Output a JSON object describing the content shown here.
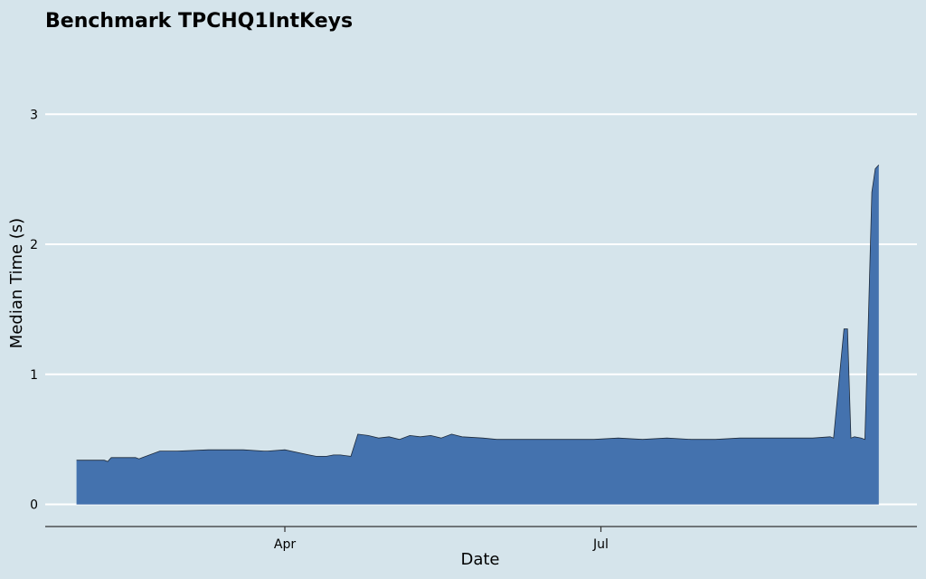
{
  "chart_data": {
    "type": "area",
    "title": "Benchmark TPCHQ1IntKeys",
    "xlabel": "Date",
    "ylabel": "Median Time (s)",
    "x_range": [
      "2020-01-23",
      "2020-09-30"
    ],
    "x_ticks": [
      {
        "date": "2020-04-01",
        "label": "Apr"
      },
      {
        "date": "2020-07-01",
        "label": "Jul"
      }
    ],
    "ylim": [
      -0.17,
      3.6
    ],
    "y_ticks": [
      0,
      1,
      2,
      3
    ],
    "grid": "horizontal",
    "legend": "none",
    "colors": {
      "background": "#d5e4eb",
      "fill": "#4472ae",
      "outline": "#1f2b3a",
      "grid": "#ffffff",
      "axis": "#333333"
    },
    "x": [
      "2020-02-01",
      "2020-02-09",
      "2020-02-10",
      "2020-02-11",
      "2020-02-18",
      "2020-02-19",
      "2020-02-20",
      "2020-02-25",
      "2020-03-01",
      "2020-03-10",
      "2020-03-20",
      "2020-03-26",
      "2020-03-27",
      "2020-04-01",
      "2020-04-08",
      "2020-04-10",
      "2020-04-12",
      "2020-04-13",
      "2020-04-15",
      "2020-04-17",
      "2020-04-20",
      "2020-04-22",
      "2020-04-25",
      "2020-04-28",
      "2020-05-01",
      "2020-05-04",
      "2020-05-07",
      "2020-05-10",
      "2020-05-13",
      "2020-05-16",
      "2020-05-19",
      "2020-05-22",
      "2020-05-28",
      "2020-06-01",
      "2020-06-08",
      "2020-06-15",
      "2020-06-22",
      "2020-06-29",
      "2020-07-06",
      "2020-07-13",
      "2020-07-20",
      "2020-07-27",
      "2020-08-03",
      "2020-08-10",
      "2020-08-17",
      "2020-08-24",
      "2020-08-31",
      "2020-09-05",
      "2020-09-06",
      "2020-09-09",
      "2020-09-10",
      "2020-09-11",
      "2020-09-12",
      "2020-09-14",
      "2020-09-15",
      "2020-09-16",
      "2020-09-17",
      "2020-09-18",
      "2020-09-19"
    ],
    "y": [
      0.34,
      0.34,
      0.33,
      0.36,
      0.36,
      0.35,
      0.36,
      0.41,
      0.41,
      0.42,
      0.42,
      0.41,
      0.41,
      0.42,
      0.38,
      0.37,
      0.37,
      0.37,
      0.38,
      0.38,
      0.37,
      0.54,
      0.53,
      0.51,
      0.52,
      0.5,
      0.53,
      0.52,
      0.53,
      0.51,
      0.54,
      0.52,
      0.51,
      0.5,
      0.5,
      0.5,
      0.5,
      0.5,
      0.51,
      0.5,
      0.51,
      0.5,
      0.5,
      0.51,
      0.51,
      0.51,
      0.51,
      0.52,
      0.51,
      1.35,
      1.35,
      0.51,
      0.52,
      0.51,
      0.5,
      1.4,
      2.4,
      2.58,
      2.61
    ]
  }
}
